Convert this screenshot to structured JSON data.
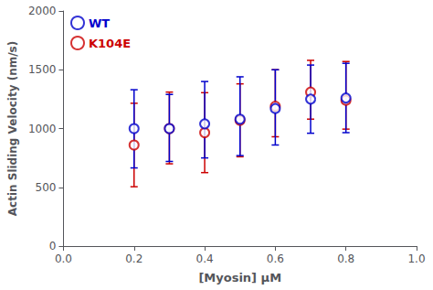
{
  "chart_data": {
    "type": "scatter",
    "xlabel": "[Myosin] μM",
    "ylabel": "Actin Sliding Velocity (nm/s)",
    "xlim": [
      0.0,
      1.0
    ],
    "ylim": [
      0,
      2000
    ],
    "xticks": [
      {
        "value": 0.0,
        "label": "0.0"
      },
      0.2,
      0.4,
      0.6,
      0.8,
      {
        "value": 1.0,
        "label": "1.0"
      }
    ],
    "yticks": [
      0,
      500,
      1000,
      1500,
      2000
    ],
    "grid": false,
    "legend": "upper left",
    "marker": "emptyCircle",
    "series": [
      {
        "name": "WT",
        "color": "#0000CC",
        "x": [
          0.2,
          0.3,
          0.4,
          0.5,
          0.6,
          0.7,
          0.8
        ],
        "values": [
          1000,
          1000,
          1040,
          1080,
          1170,
          1250,
          1260
        ],
        "yerr_lo": [
          335,
          280,
          290,
          310,
          310,
          290,
          295
        ],
        "yerr_hi": [
          330,
          290,
          360,
          360,
          330,
          290,
          295
        ]
      },
      {
        "name": "K104E",
        "color": "#CC0000",
        "x": [
          0.2,
          0.3,
          0.4,
          0.5,
          0.6,
          0.7,
          0.8
        ],
        "values": [
          860,
          1000,
          965,
          1070,
          1190,
          1310,
          1240
        ],
        "yerr_lo": [
          355,
          300,
          340,
          310,
          260,
          230,
          245
        ],
        "yerr_hi": [
          355,
          310,
          340,
          310,
          310,
          270,
          330
        ]
      }
    ]
  }
}
